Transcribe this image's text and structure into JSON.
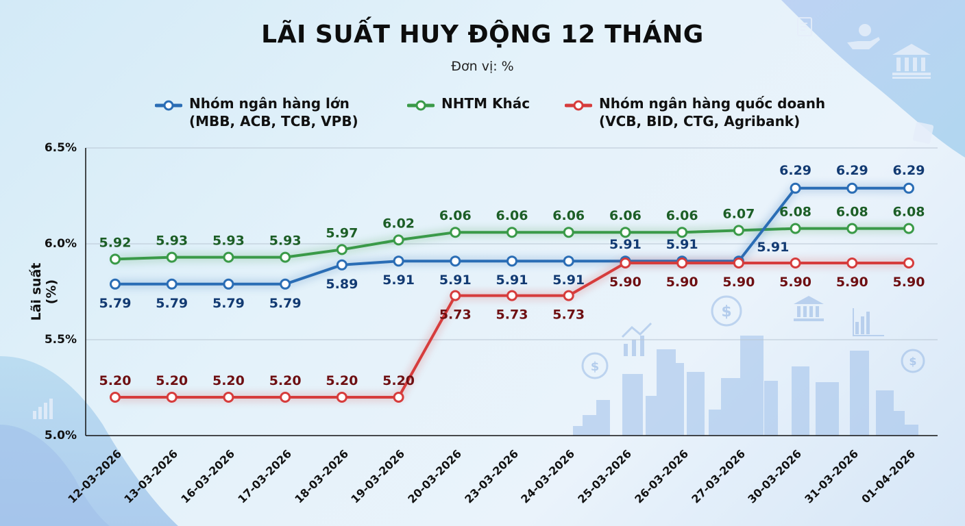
{
  "header": {
    "title": "LÃI SUẤT HUY ĐỘNG 12 THÁNG",
    "subtitle": "Đơn vị: %"
  },
  "legend": [
    {
      "line1": "Nhóm ngân hàng lớn",
      "line2": "(MBB, ACB, TCB, VPB)",
      "color": "#2a6db5"
    },
    {
      "line1": "NHTM Khác",
      "line2": "",
      "color": "#3a9a48"
    },
    {
      "line1": "Nhóm ngân hàng quốc doanh",
      "line2": "(VCB, BID, CTG, Agribank)",
      "color": "#d63c3c"
    }
  ],
  "axes": {
    "ylabel": "Lãi suất (%)",
    "yticks": [
      "6.5%",
      "6.0%",
      "5.5%",
      "5.0%"
    ]
  },
  "decor_icons": [
    "document-edit-icon",
    "hand-coin-icon",
    "bank-icon",
    "wallet-dollar-icon",
    "growth-chart-icon",
    "dollar-coin-icon",
    "bar-chart-icon",
    "city-skyline"
  ],
  "chart_data": {
    "type": "line",
    "title": "LÃI SUẤT HUY ĐỘNG 12 THÁNG",
    "subtitle": "Đơn vị: %",
    "xlabel": "",
    "ylabel": "Lãi suất (%)",
    "ylim": [
      5.0,
      6.5
    ],
    "yticks": [
      5.0,
      5.5,
      6.0,
      6.5
    ],
    "grid": "horizontal",
    "legend_position": "top",
    "categories": [
      "12-03-2026",
      "13-03-2026",
      "16-03-2026",
      "17-03-2026",
      "18-03-2026",
      "19-03-2026",
      "20-03-2026",
      "23-03-2026",
      "24-03-2026",
      "25-03-2026",
      "26-03-2026",
      "27-03-2026",
      "30-03-2026",
      "31-03-2026",
      "01-04-2026"
    ],
    "series": [
      {
        "name": "Nhóm ngân hàng lớn (MBB, ACB, TCB, VPB)",
        "color": "#2a6db5",
        "label_color": "#123a72",
        "values": [
          5.79,
          5.79,
          5.79,
          5.79,
          5.89,
          5.91,
          5.91,
          5.91,
          5.91,
          5.91,
          5.91,
          5.91,
          6.29,
          6.29,
          6.29
        ]
      },
      {
        "name": "NHTM Khác",
        "color": "#3a9a48",
        "label_color": "#1c5e26",
        "values": [
          5.92,
          5.93,
          5.93,
          5.93,
          5.97,
          6.02,
          6.06,
          6.06,
          6.06,
          6.06,
          6.06,
          6.07,
          6.08,
          6.08,
          6.08
        ]
      },
      {
        "name": "Nhóm ngân hàng quốc doanh (VCB, BID, CTG, Agribank)",
        "color": "#d63c3c",
        "label_color": "#6e0f12",
        "values": [
          5.2,
          5.2,
          5.2,
          5.2,
          5.2,
          5.2,
          5.73,
          5.73,
          5.73,
          5.9,
          5.9,
          5.9,
          5.9,
          5.9,
          5.9
        ]
      }
    ]
  }
}
